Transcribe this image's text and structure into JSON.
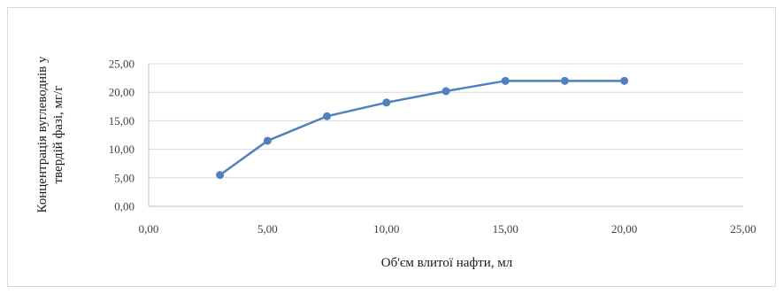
{
  "chart_data": {
    "type": "scatter",
    "title": "",
    "xlabel": "Об'єм влитої нафти, мл",
    "ylabel_lines": [
      "Концентрація вуглеводнів у",
      "твердій фазі, мг/г"
    ],
    "xlim": [
      0,
      25
    ],
    "ylim": [
      0,
      25
    ],
    "x_ticks": [
      0,
      5,
      10,
      15,
      20,
      25
    ],
    "y_ticks": [
      0,
      5,
      10,
      15,
      20,
      25
    ],
    "x_tick_labels": [
      "0,00",
      "5,00",
      "10,00",
      "15,00",
      "20,00",
      "25,00"
    ],
    "y_tick_labels": [
      "0,00",
      "5,00",
      "10,00",
      "15,00",
      "20,00",
      "25,00"
    ],
    "grid": "horizontal",
    "legend": "none",
    "series": [
      {
        "color": "#4f81bd",
        "x": [
          3,
          5,
          7.5,
          10,
          12.5,
          15,
          17.5,
          20
        ],
        "y": [
          5.5,
          11.5,
          15.8,
          18.2,
          20.2,
          22.0,
          22.0,
          22.0
        ]
      }
    ]
  }
}
